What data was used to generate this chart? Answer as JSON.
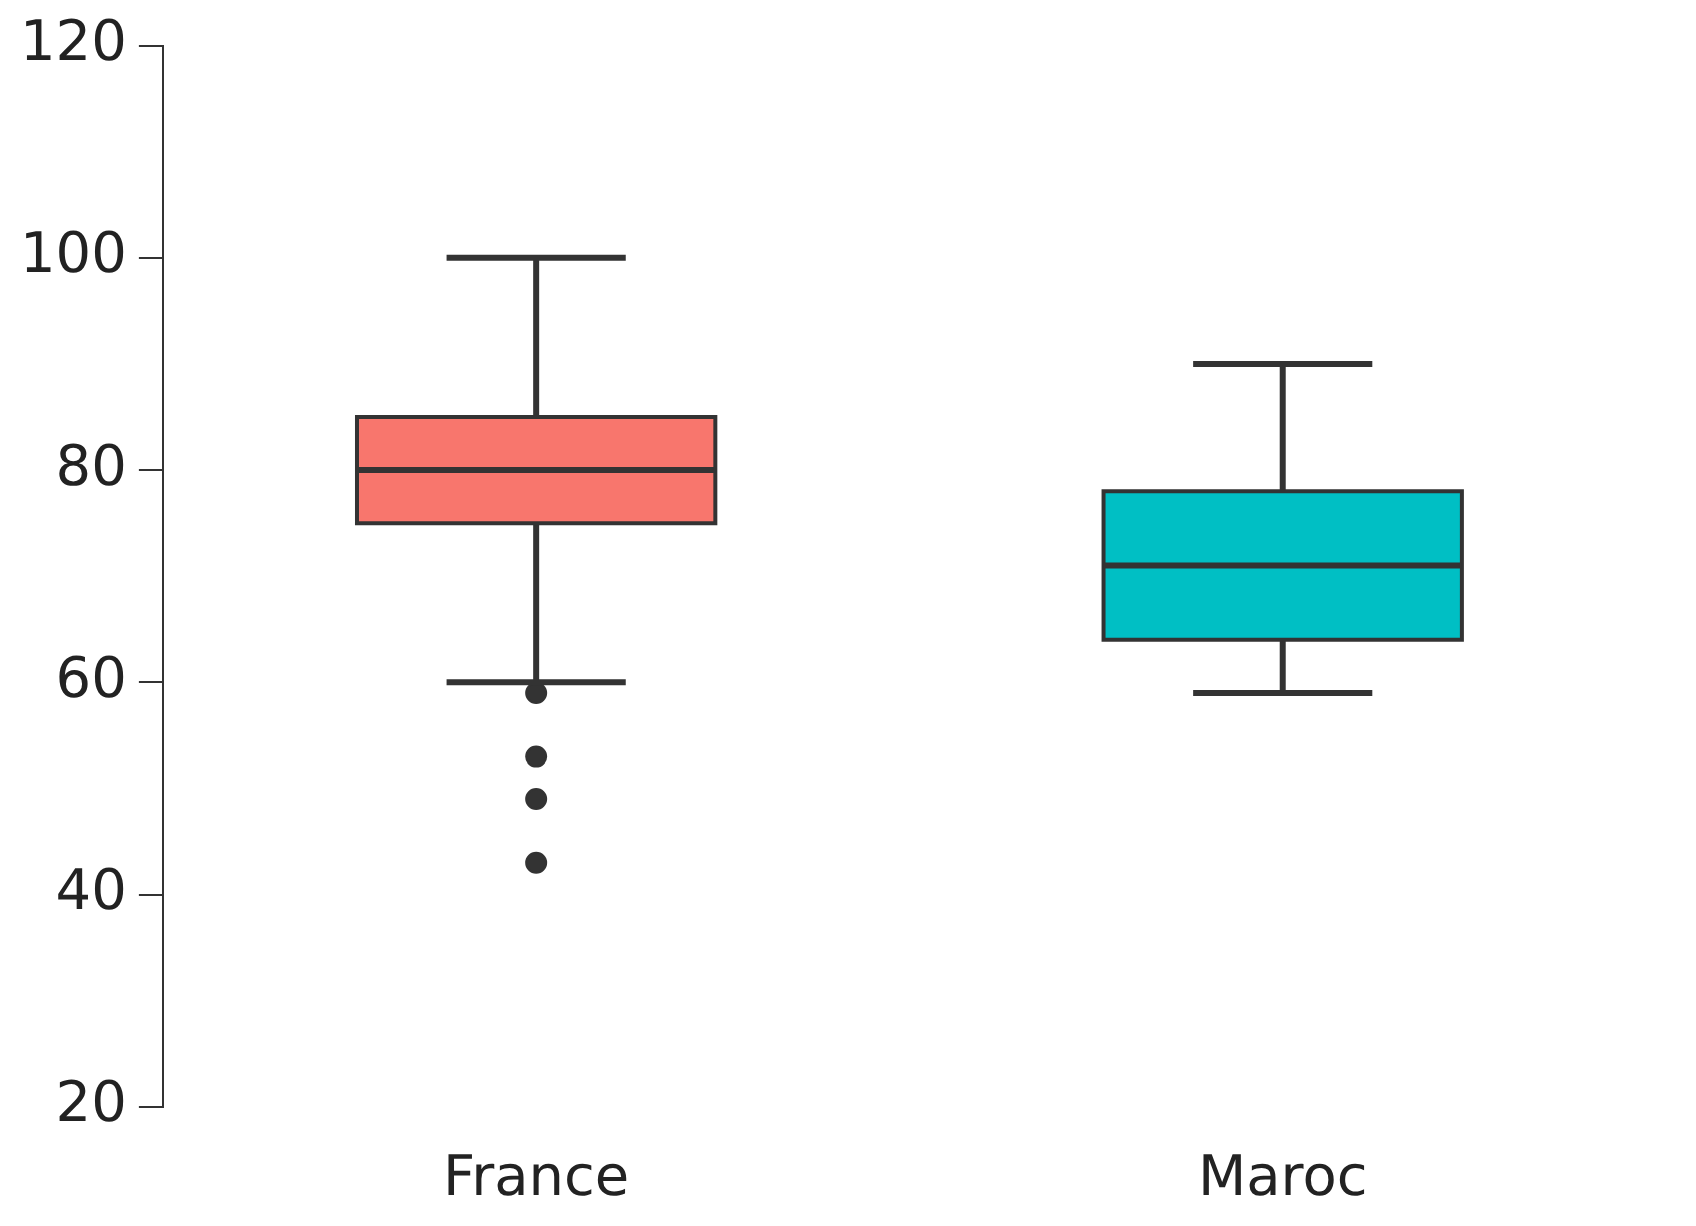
{
  "chart_data": {
    "type": "box",
    "categories": [
      "France",
      "Maroc"
    ],
    "boxes": [
      {
        "low": 60,
        "q1": 75,
        "median": 80,
        "q3": 85,
        "high": 100,
        "outliers": [
          59,
          53,
          49,
          43
        ]
      },
      {
        "low": 59,
        "q1": 64,
        "median": 71,
        "q3": 78,
        "high": 90
      }
    ],
    "colors": [
      "#f8766d",
      "#00bfc4"
    ],
    "ylim": [
      20,
      120
    ],
    "yticks": [
      20,
      40,
      60,
      80,
      100,
      120
    ],
    "grid": false,
    "legend": false
  }
}
